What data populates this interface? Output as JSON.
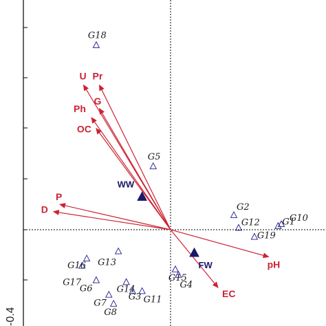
{
  "chart_data": {
    "type": "scatter",
    "subtype": "biplot",
    "title": "",
    "xlabel": "",
    "ylabel": "",
    "xlim": [
      -1.0,
      0.85
    ],
    "ylim": [
      -0.52,
      1.22
    ],
    "y_tick_label": "-0.4",
    "grid": false,
    "reference_lines": "dotted lines at x=0 and y=0",
    "colors": {
      "sites": "#1a1a8c",
      "variables": "#cc2233",
      "treatments": "#1a1a6a",
      "axes": "#000000"
    },
    "sites": [
      {
        "label": "G18",
        "x": -0.47,
        "y": 1.02
      },
      {
        "label": "G5",
        "x": -0.11,
        "y": 0.35
      },
      {
        "label": "G2",
        "x": 0.4,
        "y": 0.08
      },
      {
        "label": "G10",
        "x": 0.7,
        "y": 0.03
      },
      {
        "label": "G12",
        "x": 0.43,
        "y": 0.01
      },
      {
        "label": "G1",
        "x": 0.68,
        "y": 0.02
      },
      {
        "label": "G19",
        "x": 0.53,
        "y": -0.04
      },
      {
        "label": "G16",
        "x": -0.53,
        "y": -0.16
      },
      {
        "label": "G13",
        "x": -0.33,
        "y": -0.12
      },
      {
        "label": "G17",
        "x": -0.56,
        "y": -0.2
      },
      {
        "label": "G6",
        "x": -0.47,
        "y": -0.28
      },
      {
        "label": "G14",
        "x": -0.28,
        "y": -0.29
      },
      {
        "label": "G3",
        "x": -0.24,
        "y": -0.34
      },
      {
        "label": "G11",
        "x": -0.18,
        "y": -0.34
      },
      {
        "label": "G7",
        "x": -0.39,
        "y": -0.36
      },
      {
        "label": "G8",
        "x": -0.36,
        "y": -0.41
      },
      {
        "label": "G15",
        "x": 0.03,
        "y": -0.22
      },
      {
        "label": "G4",
        "x": 0.05,
        "y": -0.25
      }
    ],
    "variables": [
      {
        "label": "U",
        "x": -0.55,
        "y": 0.8
      },
      {
        "label": "Pr",
        "x": -0.45,
        "y": 0.8
      },
      {
        "label": "G",
        "x": -0.45,
        "y": 0.67
      },
      {
        "label": "Ph",
        "x": -0.5,
        "y": 0.62
      },
      {
        "label": "OC",
        "x": -0.47,
        "y": 0.56
      },
      {
        "label": "P",
        "x": -0.7,
        "y": 0.14
      },
      {
        "label": "D",
        "x": -0.74,
        "y": 0.1
      },
      {
        "label": "pH",
        "x": 0.62,
        "y": -0.15
      },
      {
        "label": "EC",
        "x": 0.3,
        "y": -0.32
      }
    ],
    "treatments": [
      {
        "label": "WW",
        "x": -0.18,
        "y": 0.18
      },
      {
        "label": "FW",
        "x": 0.15,
        "y": -0.13
      }
    ]
  }
}
